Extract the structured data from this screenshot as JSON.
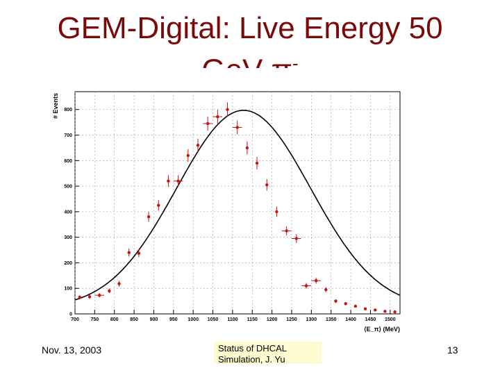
{
  "slide": {
    "title_line1": "GEM-Digital: Live Energy 50",
    "title_line2": "GeV π",
    "title_sup": "-",
    "footer_date": "Nov. 13, 2003",
    "footer_center_line1": "Status of DHCAL",
    "footer_center_line2": "Simulation, J. Yu",
    "footer_page": "13"
  },
  "colors": {
    "title": "#7a0a0a",
    "points": "#cc1111",
    "fit": "#000000",
    "grid": "#999999"
  },
  "chart_data": {
    "type": "scatter",
    "title": "",
    "xlabel": "⟨E_π⟩ (MeV)",
    "ylabel": "# Events",
    "xlim": [
      700,
      1525
    ],
    "ylim": [
      0,
      870
    ],
    "xticks": [
      700,
      750,
      800,
      850,
      900,
      950,
      1000,
      1050,
      1100,
      1150,
      1200,
      1250,
      1300,
      1350,
      1400,
      1450,
      1500
    ],
    "yticks": [
      0,
      100,
      200,
      300,
      400,
      500,
      600,
      700,
      800
    ],
    "grid": true,
    "series": [
      {
        "name": "data",
        "x": [
          712,
          737,
          762,
          787,
          812,
          837,
          862,
          887,
          912,
          937,
          962,
          987,
          1012,
          1037,
          1062,
          1087,
          1112,
          1137,
          1162,
          1187,
          1212,
          1237,
          1262,
          1287,
          1312,
          1337,
          1362,
          1387,
          1412,
          1437,
          1462,
          1487,
          1512
        ],
        "y": [
          65,
          67,
          73,
          90,
          118,
          240,
          237,
          380,
          425,
          520,
          520,
          620,
          660,
          745,
          772,
          800,
          730,
          650,
          590,
          505,
          400,
          325,
          295,
          110,
          130,
          95,
          50,
          40,
          30,
          20,
          15,
          10,
          8
        ],
        "xerr": [
          0,
          0,
          12,
          0,
          0,
          0,
          0,
          0,
          0,
          0,
          12,
          0,
          0,
          12,
          12,
          0,
          12,
          0,
          0,
          0,
          0,
          12,
          12,
          12,
          12,
          0,
          0,
          0,
          0,
          0,
          0,
          0,
          0
        ]
      }
    ],
    "fit": {
      "name": "gaussian",
      "mean": 1128,
      "sigma": 170,
      "amplitude": 775,
      "offset": 22
    }
  }
}
